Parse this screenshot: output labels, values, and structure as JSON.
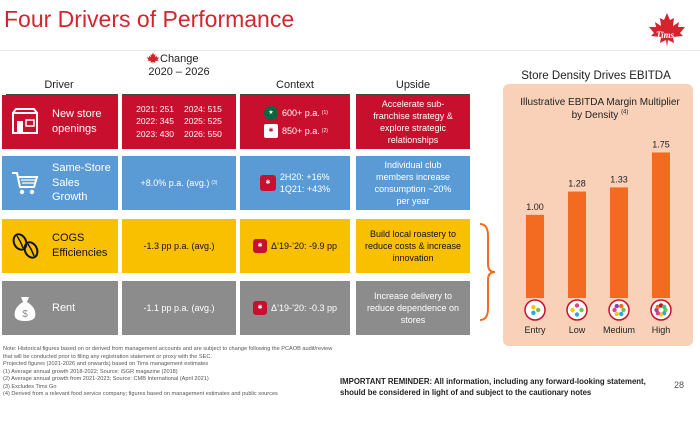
{
  "title": "Four Drivers of Performance",
  "brand": {
    "logo_text": "Tims",
    "accent": "#d6242f"
  },
  "columns": {
    "driver": "Driver",
    "change_line1": "Change",
    "change_line2": "2020 – 2026",
    "context": "Context",
    "upside": "Upside"
  },
  "rows": [
    {
      "driver": "New store openings",
      "icon": "storefront-icon",
      "color": "#c8102e",
      "change_grid": [
        "2021: 251",
        "2024: 515",
        "2022: 345",
        "2025: 525",
        "2023: 430",
        "2026: 550"
      ],
      "context": [
        {
          "icon": "starbucks-icon",
          "text": "600+ p.a.",
          "ref": "(1)"
        },
        {
          "icon": "tims-icon",
          "text": "850+ p.a.",
          "ref": "(2)"
        }
      ],
      "upside": "Accelerate sub-franchise strategy & explore strategic relationships"
    },
    {
      "driver": "Same-Store Sales Growth",
      "icon": "shopping-cart-icon",
      "color": "#5b9bd5",
      "change": "+8.0% p.a. (avg.)",
      "change_ref": "(3)",
      "context": [
        {
          "icon": "tims-icon",
          "text": "2H20: +16%"
        },
        {
          "icon": "",
          "text": "1Q21: +43%"
        }
      ],
      "upside": "Individual club members increase consumption ~20% per year"
    },
    {
      "driver": "COGS Efficiencies",
      "icon": "coffee-beans-icon",
      "color": "#f9c000",
      "change": "-1.3 pp p.a. (avg.)",
      "context": [
        {
          "icon": "tims-icon",
          "text": "Δ’19-’20: -9.9 pp"
        }
      ],
      "upside": "Build local roastery to reduce costs & increase innovation"
    },
    {
      "driver": "Rent",
      "icon": "money-bag-icon",
      "color": "#8c8c8c",
      "change": "-1.1 pp p.a. (avg.)",
      "context": [
        {
          "icon": "tims-icon",
          "text": "Δ’19-’20: -0.3 pp"
        }
      ],
      "upside": "Increase delivery to reduce dependence on stores"
    }
  ],
  "chart_data": {
    "type": "bar",
    "title": "Store Density Drives EBITDA",
    "subtitle": "Illustrative EBITDA Margin Multiplier by Density",
    "subtitle_ref": "(4)",
    "categories": [
      "Entry",
      "Low",
      "Medium",
      "High"
    ],
    "values": [
      1.0,
      1.28,
      1.33,
      1.75
    ],
    "value_labels": [
      "1.00",
      "1.28",
      "1.33",
      "1.75"
    ],
    "ylim": [
      0,
      1.9
    ],
    "grid": false,
    "bar_color": "#f26b21",
    "panel_color": "#f9d1b8"
  },
  "notes": [
    "Note: Historical figures based on or derived from management accounts and are subject to change following the PCAOB audit/review that will be conducted prior to filing any registration statement or proxy with the SEC.",
    "Projected figures (2021-2026 and onwards) based on Tims management estimates",
    "(1)    Average annual growth 2018-2022; Source: iSGR magazine (2018)",
    "(2)    Average annual growth from 2021-2023; Source: CMB International (April 2021)",
    "(3)    Excludes Tims Go",
    "(4)    Derived from a relevant food service company; figures based on management estimates and public sources"
  ],
  "reminder": "IMPORTANT REMINDER: All information, including any forward-looking statement, should be considered in light of and subject to the cautionary notes",
  "page_number": "28"
}
